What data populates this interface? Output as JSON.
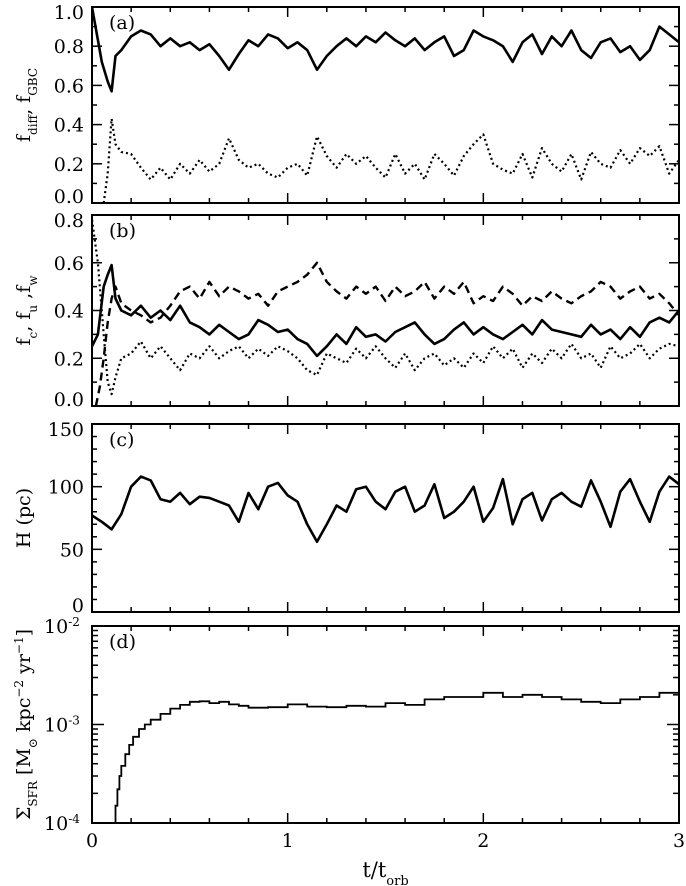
{
  "chart_data": [
    {
      "type": "line",
      "panel_label": "(a)",
      "ylabel": "f_diff, f_GBC",
      "xlim": [
        0,
        3
      ],
      "ylim": [
        0,
        1.0
      ],
      "yticks": [
        "0.0",
        "0.2",
        "0.4",
        "0.6",
        "0.8",
        "1.0"
      ],
      "series": [
        {
          "style": "solid",
          "x": [
            0,
            0.05,
            0.08,
            0.1,
            0.12,
            0.15,
            0.2,
            0.25,
            0.3,
            0.35,
            0.4,
            0.45,
            0.5,
            0.55,
            0.6,
            0.65,
            0.7,
            0.75,
            0.8,
            0.85,
            0.9,
            0.95,
            1.0,
            1.05,
            1.1,
            1.15,
            1.2,
            1.25,
            1.3,
            1.35,
            1.4,
            1.45,
            1.5,
            1.55,
            1.6,
            1.65,
            1.7,
            1.75,
            1.8,
            1.85,
            1.9,
            1.95,
            2.0,
            2.05,
            2.1,
            2.15,
            2.2,
            2.25,
            2.3,
            2.35,
            2.4,
            2.45,
            2.5,
            2.55,
            2.6,
            2.65,
            2.7,
            2.75,
            2.8,
            2.85,
            2.9,
            2.95,
            3.0
          ],
          "y": [
            1.0,
            0.72,
            0.62,
            0.57,
            0.75,
            0.78,
            0.85,
            0.88,
            0.86,
            0.8,
            0.84,
            0.8,
            0.82,
            0.78,
            0.81,
            0.75,
            0.68,
            0.76,
            0.83,
            0.8,
            0.86,
            0.84,
            0.79,
            0.82,
            0.78,
            0.68,
            0.75,
            0.8,
            0.84,
            0.8,
            0.85,
            0.82,
            0.87,
            0.83,
            0.8,
            0.84,
            0.78,
            0.82,
            0.85,
            0.75,
            0.78,
            0.88,
            0.85,
            0.83,
            0.8,
            0.72,
            0.82,
            0.86,
            0.76,
            0.85,
            0.8,
            0.88,
            0.78,
            0.74,
            0.82,
            0.84,
            0.77,
            0.8,
            0.73,
            0.78,
            0.9,
            0.86,
            0.82
          ]
        },
        {
          "style": "dotted",
          "x": [
            0.06,
            0.08,
            0.1,
            0.12,
            0.15,
            0.2,
            0.25,
            0.3,
            0.35,
            0.4,
            0.45,
            0.5,
            0.55,
            0.6,
            0.65,
            0.7,
            0.75,
            0.8,
            0.85,
            0.9,
            0.95,
            1.0,
            1.05,
            1.1,
            1.15,
            1.2,
            1.25,
            1.3,
            1.35,
            1.4,
            1.45,
            1.5,
            1.55,
            1.6,
            1.65,
            1.7,
            1.75,
            1.8,
            1.85,
            1.9,
            1.95,
            2.0,
            2.05,
            2.1,
            2.15,
            2.2,
            2.25,
            2.3,
            2.35,
            2.4,
            2.45,
            2.5,
            2.55,
            2.6,
            2.65,
            2.7,
            2.75,
            2.8,
            2.85,
            2.9,
            2.95,
            3.0
          ],
          "y": [
            0.0,
            0.15,
            0.43,
            0.3,
            0.26,
            0.25,
            0.18,
            0.12,
            0.18,
            0.12,
            0.2,
            0.15,
            0.22,
            0.16,
            0.2,
            0.33,
            0.22,
            0.18,
            0.2,
            0.15,
            0.13,
            0.18,
            0.2,
            0.14,
            0.34,
            0.24,
            0.18,
            0.25,
            0.2,
            0.24,
            0.18,
            0.13,
            0.25,
            0.15,
            0.2,
            0.12,
            0.25,
            0.2,
            0.14,
            0.24,
            0.3,
            0.35,
            0.2,
            0.17,
            0.15,
            0.25,
            0.13,
            0.28,
            0.2,
            0.16,
            0.25,
            0.12,
            0.26,
            0.2,
            0.18,
            0.27,
            0.2,
            0.28,
            0.24,
            0.29,
            0.15,
            0.22
          ]
        }
      ]
    },
    {
      "type": "line",
      "panel_label": "(b)",
      "ylabel": "f_c, f_u, f_w",
      "xlim": [
        0,
        3
      ],
      "ylim": [
        0,
        0.8
      ],
      "yticks": [
        "0.0",
        "0.2",
        "0.4",
        "0.6",
        "0.8"
      ],
      "series": [
        {
          "style": "solid",
          "x": [
            0,
            0.03,
            0.06,
            0.08,
            0.1,
            0.12,
            0.15,
            0.2,
            0.25,
            0.3,
            0.35,
            0.4,
            0.45,
            0.5,
            0.55,
            0.6,
            0.65,
            0.7,
            0.75,
            0.8,
            0.85,
            0.9,
            0.95,
            1.0,
            1.05,
            1.1,
            1.15,
            1.2,
            1.25,
            1.3,
            1.35,
            1.4,
            1.45,
            1.5,
            1.55,
            1.6,
            1.65,
            1.7,
            1.75,
            1.8,
            1.85,
            1.9,
            1.95,
            2.0,
            2.05,
            2.1,
            2.15,
            2.2,
            2.25,
            2.3,
            2.35,
            2.4,
            2.45,
            2.5,
            2.55,
            2.6,
            2.65,
            2.7,
            2.75,
            2.8,
            2.85,
            2.9,
            2.95,
            3.0
          ],
          "y": [
            0.25,
            0.3,
            0.5,
            0.55,
            0.59,
            0.45,
            0.4,
            0.38,
            0.42,
            0.37,
            0.4,
            0.36,
            0.42,
            0.35,
            0.33,
            0.3,
            0.34,
            0.31,
            0.28,
            0.3,
            0.36,
            0.34,
            0.31,
            0.32,
            0.28,
            0.26,
            0.21,
            0.25,
            0.3,
            0.26,
            0.33,
            0.29,
            0.3,
            0.27,
            0.31,
            0.33,
            0.35,
            0.3,
            0.26,
            0.28,
            0.32,
            0.35,
            0.3,
            0.33,
            0.3,
            0.28,
            0.31,
            0.34,
            0.3,
            0.36,
            0.32,
            0.31,
            0.3,
            0.29,
            0.34,
            0.3,
            0.32,
            0.28,
            0.33,
            0.29,
            0.35,
            0.37,
            0.35,
            0.4
          ]
        },
        {
          "style": "dashed",
          "x": [
            0.02,
            0.04,
            0.06,
            0.08,
            0.1,
            0.12,
            0.15,
            0.2,
            0.25,
            0.3,
            0.35,
            0.4,
            0.45,
            0.5,
            0.55,
            0.6,
            0.65,
            0.7,
            0.75,
            0.8,
            0.85,
            0.9,
            0.95,
            1.0,
            1.05,
            1.1,
            1.15,
            1.2,
            1.25,
            1.3,
            1.35,
            1.4,
            1.45,
            1.5,
            1.55,
            1.6,
            1.65,
            1.7,
            1.75,
            1.8,
            1.85,
            1.9,
            1.95,
            2.0,
            2.05,
            2.1,
            2.15,
            2.2,
            2.25,
            2.3,
            2.35,
            2.4,
            2.45,
            2.5,
            2.55,
            2.6,
            2.65,
            2.7,
            2.75,
            2.8,
            2.85,
            2.9,
            2.95,
            3.0
          ],
          "y": [
            0.0,
            0.08,
            0.2,
            0.35,
            0.45,
            0.5,
            0.43,
            0.4,
            0.38,
            0.35,
            0.37,
            0.42,
            0.48,
            0.5,
            0.45,
            0.52,
            0.46,
            0.5,
            0.48,
            0.45,
            0.47,
            0.42,
            0.48,
            0.5,
            0.52,
            0.55,
            0.6,
            0.52,
            0.48,
            0.45,
            0.5,
            0.47,
            0.5,
            0.44,
            0.5,
            0.46,
            0.48,
            0.52,
            0.45,
            0.5,
            0.47,
            0.52,
            0.43,
            0.46,
            0.44,
            0.5,
            0.47,
            0.42,
            0.46,
            0.44,
            0.48,
            0.45,
            0.43,
            0.46,
            0.48,
            0.52,
            0.5,
            0.45,
            0.48,
            0.5,
            0.45,
            0.47,
            0.43,
            0.38
          ]
        },
        {
          "style": "dotted",
          "x": [
            0.0,
            0.03,
            0.06,
            0.08,
            0.1,
            0.12,
            0.15,
            0.2,
            0.25,
            0.3,
            0.35,
            0.4,
            0.45,
            0.5,
            0.55,
            0.6,
            0.65,
            0.7,
            0.75,
            0.8,
            0.85,
            0.9,
            0.95,
            1.0,
            1.05,
            1.1,
            1.15,
            1.2,
            1.25,
            1.3,
            1.35,
            1.4,
            1.45,
            1.5,
            1.55,
            1.6,
            1.65,
            1.7,
            1.75,
            1.8,
            1.85,
            1.9,
            1.95,
            2.0,
            2.05,
            2.1,
            2.15,
            2.2,
            2.25,
            2.3,
            2.35,
            2.4,
            2.45,
            2.5,
            2.55,
            2.6,
            2.65,
            2.7,
            2.75,
            2.8,
            2.85,
            2.9,
            2.95,
            3.0
          ],
          "y": [
            0.78,
            0.6,
            0.3,
            0.1,
            0.05,
            0.12,
            0.2,
            0.22,
            0.27,
            0.2,
            0.25,
            0.2,
            0.15,
            0.22,
            0.2,
            0.25,
            0.2,
            0.23,
            0.25,
            0.2,
            0.24,
            0.21,
            0.25,
            0.23,
            0.2,
            0.15,
            0.13,
            0.22,
            0.2,
            0.18,
            0.24,
            0.2,
            0.25,
            0.2,
            0.16,
            0.22,
            0.15,
            0.2,
            0.22,
            0.17,
            0.2,
            0.16,
            0.22,
            0.18,
            0.25,
            0.2,
            0.24,
            0.16,
            0.22,
            0.18,
            0.24,
            0.2,
            0.26,
            0.2,
            0.22,
            0.16,
            0.25,
            0.2,
            0.22,
            0.26,
            0.2,
            0.24,
            0.26,
            0.25
          ]
        }
      ]
    },
    {
      "type": "line",
      "panel_label": "(c)",
      "ylabel": "H (pc)",
      "xlim": [
        0,
        3
      ],
      "ylim": [
        0,
        150
      ],
      "yticks": [
        "0",
        "50",
        "100",
        "150"
      ],
      "series": [
        {
          "style": "solid",
          "x": [
            0,
            0.05,
            0.1,
            0.15,
            0.2,
            0.25,
            0.3,
            0.35,
            0.4,
            0.45,
            0.5,
            0.55,
            0.6,
            0.65,
            0.7,
            0.75,
            0.8,
            0.85,
            0.9,
            0.95,
            1.0,
            1.05,
            1.1,
            1.15,
            1.2,
            1.25,
            1.3,
            1.35,
            1.4,
            1.45,
            1.5,
            1.55,
            1.6,
            1.65,
            1.7,
            1.75,
            1.8,
            1.85,
            1.9,
            1.95,
            2.0,
            2.05,
            2.1,
            2.15,
            2.2,
            2.25,
            2.3,
            2.35,
            2.4,
            2.45,
            2.5,
            2.55,
            2.6,
            2.65,
            2.7,
            2.75,
            2.8,
            2.85,
            2.9,
            2.95,
            3.0
          ],
          "y": [
            77,
            72,
            66,
            78,
            100,
            108,
            105,
            90,
            88,
            95,
            86,
            92,
            91,
            88,
            85,
            72,
            95,
            82,
            100,
            103,
            93,
            88,
            70,
            56,
            70,
            85,
            80,
            98,
            100,
            88,
            82,
            96,
            100,
            80,
            85,
            102,
            75,
            80,
            88,
            100,
            72,
            83,
            106,
            70,
            90,
            95,
            73,
            90,
            95,
            88,
            84,
            105,
            88,
            68,
            96,
            106,
            88,
            72,
            96,
            108,
            102
          ]
        }
      ]
    },
    {
      "type": "line",
      "panel_label": "(d)",
      "ylabel": "Σ_SFR [M_⊙ kpc^-2 yr^-1]",
      "xlabel": "t/t_orb",
      "yscale": "log",
      "xlim": [
        0,
        3
      ],
      "ylim": [
        0.0001,
        0.01
      ],
      "yticks": [
        "10^-4",
        "10^-3",
        "10^-2"
      ],
      "xticks": [
        "0",
        "1",
        "2",
        "3"
      ],
      "series": [
        {
          "style": "step",
          "x": [
            0.115,
            0.12,
            0.13,
            0.14,
            0.15,
            0.17,
            0.19,
            0.21,
            0.24,
            0.27,
            0.3,
            0.35,
            0.4,
            0.45,
            0.5,
            0.55,
            0.6,
            0.65,
            0.7,
            0.75,
            0.8,
            0.9,
            1.0,
            1.1,
            1.2,
            1.3,
            1.4,
            1.5,
            1.6,
            1.7,
            1.8,
            1.9,
            2.0,
            2.1,
            2.2,
            2.3,
            2.4,
            2.5,
            2.6,
            2.7,
            2.8,
            2.9,
            3.0
          ],
          "y": [
            0.0001,
            0.00015,
            0.00022,
            0.0003,
            0.00038,
            0.0005,
            0.00062,
            0.00075,
            0.0009,
            0.001,
            0.00112,
            0.00128,
            0.00145,
            0.00158,
            0.0017,
            0.00172,
            0.00165,
            0.0017,
            0.0016,
            0.00155,
            0.00148,
            0.0015,
            0.0016,
            0.00152,
            0.0015,
            0.00155,
            0.00152,
            0.00165,
            0.00158,
            0.0018,
            0.0019,
            0.0019,
            0.0021,
            0.0019,
            0.002,
            0.0019,
            0.0018,
            0.0017,
            0.00165,
            0.0018,
            0.0019,
            0.0021,
            0.0022
          ]
        }
      ]
    }
  ]
}
